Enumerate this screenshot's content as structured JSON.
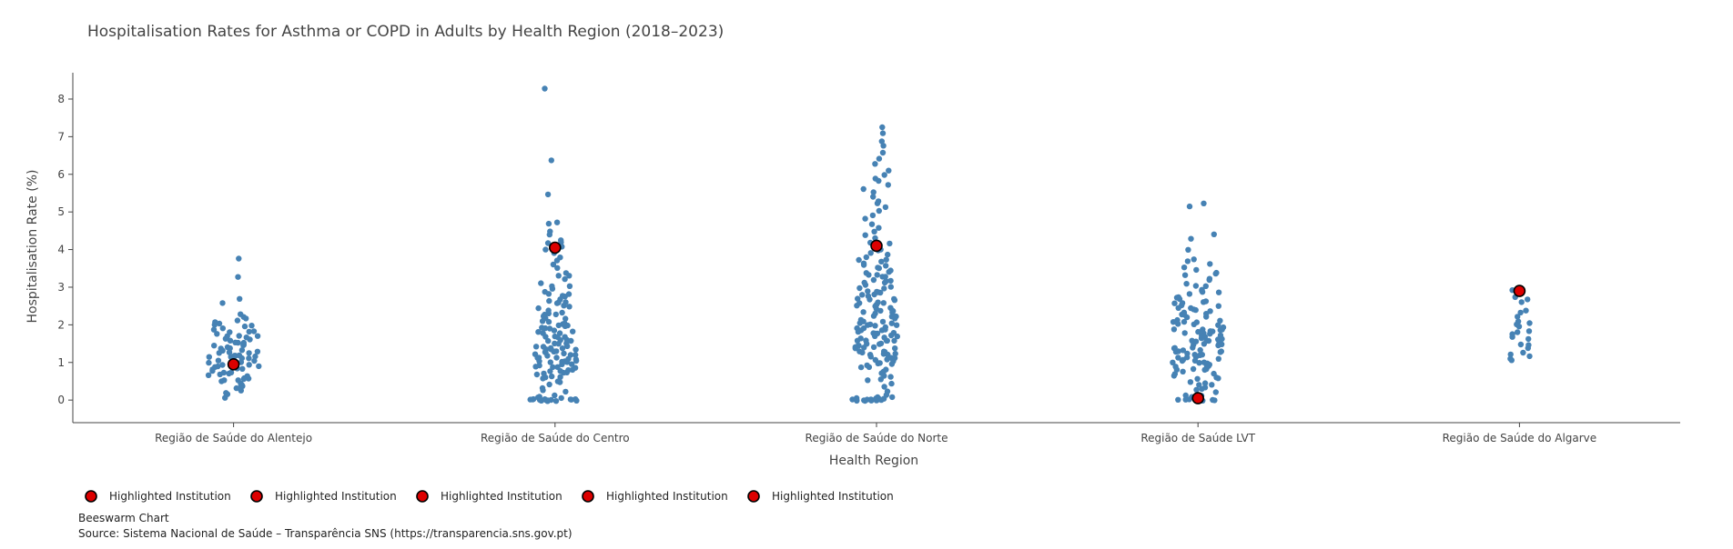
{
  "chart_data": {
    "type": "scatter",
    "title": "Hospitalisation Rates for Asthma or COPD in Adults by Health Region (2018–2023)",
    "xlabel": "Health Region",
    "ylabel": "Hospitalisation Rate (%)",
    "ylim": [
      -0.6,
      8.7
    ],
    "yticks": [
      0,
      1,
      2,
      3,
      4,
      5,
      6,
      7,
      8
    ],
    "categories": [
      "Região de Saúde do Alentejo",
      "Região de Saúde do Centro",
      "Região de Saúde do Norte",
      "Região de Saúde LVT",
      "Região de Saúde do Algarve"
    ],
    "grid": false,
    "legend_position": "bottom-left",
    "base_color": "#4682b4",
    "highlight_color": "#dd0000",
    "regions": [
      {
        "category": "Região de Saúde do Alentejo",
        "values": [
          3.75,
          3.3,
          2.7,
          2.6,
          2.3,
          2.2,
          2.15,
          2.1,
          2.05,
          2.0,
          2.0,
          1.95,
          1.9,
          1.85,
          1.8,
          1.8,
          1.75,
          1.7,
          1.7,
          1.65,
          1.6,
          1.6,
          1.55,
          1.5,
          1.5,
          1.45,
          1.45,
          1.4,
          1.4,
          1.35,
          1.35,
          1.3,
          1.3,
          1.25,
          1.25,
          1.2,
          1.2,
          1.15,
          1.15,
          1.1,
          1.1,
          1.05,
          1.05,
          1.0,
          1.0,
          0.95,
          0.95,
          0.9,
          0.9,
          0.85,
          0.85,
          0.8,
          0.8,
          0.75,
          0.75,
          0.7,
          0.7,
          0.65,
          0.6,
          0.6,
          0.55,
          0.5,
          0.5,
          0.45,
          0.4,
          0.4,
          0.35,
          0.3,
          0.25,
          0.2,
          0.15,
          0.05,
          1.45,
          1.3,
          1.2,
          1.1,
          1.0,
          0.9,
          1.6,
          1.7,
          1.85,
          2.05,
          0.65,
          0.55,
          1.25,
          1.15
        ],
        "highlight": 0.95
      },
      {
        "category": "Região de Saúde do Centro",
        "values": [
          8.3,
          6.4,
          5.45,
          4.75,
          4.7,
          4.5,
          4.4,
          4.25,
          4.2,
          4.15,
          4.05,
          4.0,
          3.9,
          3.8,
          3.7,
          3.6,
          3.5,
          3.4,
          3.3,
          3.2,
          3.1,
          3.05,
          3.0,
          2.95,
          2.9,
          2.85,
          2.8,
          2.75,
          2.7,
          2.65,
          2.6,
          2.55,
          2.5,
          2.45,
          2.4,
          2.35,
          2.3,
          2.25,
          2.2,
          2.15,
          2.1,
          2.05,
          2.0,
          2.0,
          1.95,
          1.9,
          1.9,
          1.85,
          1.8,
          1.8,
          1.75,
          1.7,
          1.7,
          1.65,
          1.6,
          1.6,
          1.55,
          1.5,
          1.5,
          1.45,
          1.45,
          1.4,
          1.4,
          1.35,
          1.35,
          1.3,
          1.3,
          1.25,
          1.25,
          1.2,
          1.2,
          1.15,
          1.15,
          1.1,
          1.1,
          1.05,
          1.05,
          1.0,
          1.0,
          0.95,
          0.95,
          0.9,
          0.9,
          0.85,
          0.85,
          0.8,
          0.8,
          0.75,
          0.75,
          0.7,
          0.7,
          0.65,
          0.6,
          0.55,
          0.5,
          0.45,
          0.4,
          0.3,
          0.25,
          0.2,
          0.15,
          0.1,
          0.05,
          0.05,
          0.02,
          0.02,
          0.0,
          0.0,
          0.0,
          0.0,
          0.0,
          0.0,
          0.0,
          0.0,
          0.0,
          0.0,
          0.0,
          0.0,
          0.0,
          0.0,
          1.5,
          1.3,
          1.1,
          0.9,
          1.7,
          1.9,
          2.1,
          2.3,
          2.6,
          1.4,
          1.2,
          1.0,
          0.8,
          1.6,
          1.8,
          2.0,
          1.35,
          1.15,
          1.25,
          1.05,
          2.2,
          2.5,
          2.8,
          3.3,
          0.6,
          0.7
        ],
        "highlight": 4.05
      },
      {
        "category": "Região de Saúde do Norte",
        "values": [
          7.25,
          7.1,
          6.9,
          6.75,
          6.55,
          6.4,
          6.25,
          6.1,
          6.0,
          5.9,
          5.8,
          5.7,
          5.6,
          5.5,
          5.4,
          5.3,
          5.2,
          5.1,
          5.0,
          4.9,
          4.8,
          4.7,
          4.6,
          4.5,
          4.4,
          4.3,
          4.2,
          4.15,
          4.1,
          4.0,
          3.95,
          3.9,
          3.85,
          3.8,
          3.75,
          3.7,
          3.65,
          3.6,
          3.55,
          3.5,
          3.45,
          3.4,
          3.35,
          3.3,
          3.25,
          3.2,
          3.15,
          3.1,
          3.05,
          3.0,
          2.95,
          2.9,
          2.85,
          2.8,
          2.75,
          2.7,
          2.65,
          2.6,
          2.55,
          2.5,
          2.45,
          2.4,
          2.35,
          2.3,
          2.25,
          2.2,
          2.15,
          2.1,
          2.05,
          2.0,
          2.0,
          1.95,
          1.9,
          1.9,
          1.85,
          1.8,
          1.8,
          1.75,
          1.7,
          1.7,
          1.65,
          1.6,
          1.6,
          1.55,
          1.5,
          1.5,
          1.45,
          1.4,
          1.4,
          1.35,
          1.3,
          1.3,
          1.25,
          1.2,
          1.2,
          1.15,
          1.1,
          1.1,
          1.05,
          1.0,
          1.0,
          0.95,
          0.9,
          0.85,
          0.8,
          0.75,
          0.7,
          0.65,
          0.6,
          0.55,
          0.5,
          0.45,
          0.35,
          0.25,
          0.15,
          0.1,
          0.05,
          0.05,
          0.05,
          0.02,
          0.02,
          0.0,
          0.0,
          0.0,
          0.0,
          0.0,
          0.0,
          0.0,
          0.0,
          0.0,
          0.0,
          0.0,
          0.0,
          2.0,
          2.2,
          2.4,
          2.6,
          2.8,
          3.0,
          1.8,
          1.6,
          1.4,
          1.2,
          1.0,
          2.1,
          2.3,
          2.5,
          2.7,
          2.9,
          3.1,
          1.9,
          1.7,
          1.5,
          1.3,
          1.1,
          3.3,
          3.5,
          3.7,
          1.75,
          1.55,
          1.35,
          2.05,
          2.25,
          2.45,
          1.65,
          1.45,
          1.25,
          2.15,
          2.35,
          2.55,
          0.9,
          1.05,
          3.2,
          3.4,
          2.65,
          2.85,
          1.85,
          1.95
        ],
        "highlight": 4.1
      },
      {
        "category": "Região de Saúde LVT",
        "values": [
          5.25,
          5.15,
          4.4,
          4.3,
          4.0,
          3.75,
          3.7,
          3.6,
          3.5,
          3.45,
          3.4,
          3.35,
          3.3,
          3.25,
          3.2,
          3.1,
          3.05,
          3.0,
          2.95,
          2.9,
          2.85,
          2.8,
          2.75,
          2.7,
          2.65,
          2.6,
          2.55,
          2.5,
          2.45,
          2.4,
          2.35,
          2.3,
          2.25,
          2.2,
          2.15,
          2.1,
          2.05,
          2.0,
          2.0,
          1.95,
          1.9,
          1.9,
          1.85,
          1.8,
          1.8,
          1.75,
          1.7,
          1.7,
          1.65,
          1.6,
          1.6,
          1.55,
          1.5,
          1.5,
          1.45,
          1.4,
          1.4,
          1.35,
          1.3,
          1.3,
          1.25,
          1.2,
          1.2,
          1.15,
          1.1,
          1.1,
          1.05,
          1.0,
          1.0,
          0.95,
          0.9,
          0.9,
          0.85,
          0.8,
          0.8,
          0.75,
          0.7,
          0.7,
          0.65,
          0.6,
          0.55,
          0.5,
          0.45,
          0.4,
          0.35,
          0.3,
          0.25,
          0.2,
          0.15,
          0.1,
          0.1,
          0.05,
          0.02,
          0.0,
          0.0,
          0.0,
          0.0,
          0.0,
          2.5,
          2.3,
          2.1,
          1.9,
          1.7,
          1.5,
          1.3,
          1.1,
          0.9,
          2.6,
          2.4,
          2.2,
          2.0,
          1.8,
          1.6,
          1.4,
          1.2,
          1.0,
          0.8,
          2.7,
          2.9,
          1.75,
          1.55,
          1.35,
          1.15,
          0.95,
          2.05,
          2.25,
          2.45,
          1.85,
          1.65,
          1.45,
          1.25,
          1.05,
          0.6,
          0.4
        ],
        "highlight": 0.05
      },
      {
        "category": "Região de Saúde do Algarve",
        "values": [
          2.9,
          2.85,
          2.75,
          2.65,
          2.6,
          2.4,
          2.3,
          2.2,
          2.1,
          2.05,
          2.0,
          1.95,
          1.85,
          1.8,
          1.75,
          1.7,
          1.6,
          1.5,
          1.45,
          1.4,
          1.25,
          1.2,
          1.15,
          1.1,
          1.05
        ],
        "highlight": 2.9
      }
    ],
    "legend_entries": [
      "Highlighted Institution",
      "Highlighted Institution",
      "Highlighted Institution",
      "Highlighted Institution",
      "Highlighted Institution"
    ],
    "annotations": [
      "Beeswarm Chart",
      "Source: Sistema Nacional de Saúde – Transparência SNS (https://transparencia.sns.gov.pt)"
    ]
  }
}
